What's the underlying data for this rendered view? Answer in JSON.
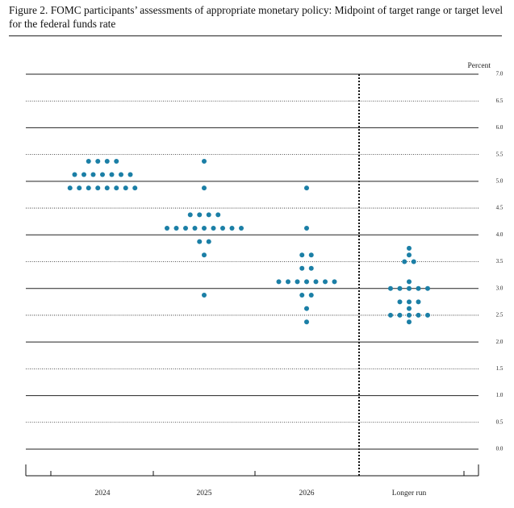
{
  "chart_data": {
    "type": "dot",
    "title": "Figure 2.  FOMC participants’ assessments of appropriate monetary policy:  Midpoint of target range or target level for the federal funds rate",
    "y_axis_label": "Percent",
    "categories": [
      "2024",
      "2025",
      "2026",
      "Longer run"
    ],
    "color": "#1b7fa6",
    "values": [
      [
        5.375,
        5.375,
        5.375,
        5.375,
        5.125,
        5.125,
        5.125,
        5.125,
        5.125,
        5.125,
        5.125,
        4.875,
        4.875,
        4.875,
        4.875,
        4.875,
        4.875,
        4.875,
        4.875
      ],
      [
        5.375,
        4.875,
        4.375,
        4.375,
        4.375,
        4.375,
        4.125,
        4.125,
        4.125,
        4.125,
        4.125,
        4.125,
        4.125,
        4.125,
        4.125,
        3.875,
        3.875,
        3.625,
        2.875
      ],
      [
        4.875,
        4.125,
        3.625,
        3.625,
        3.375,
        3.375,
        3.125,
        3.125,
        3.125,
        3.125,
        3.125,
        3.125,
        3.125,
        2.875,
        2.875,
        2.625,
        2.375
      ],
      [
        3.75,
        3.625,
        3.5,
        3.5,
        3.125,
        3,
        3,
        3,
        3,
        3,
        2.75,
        2.75,
        2.75,
        2.625,
        2.5,
        2.5,
        2.5,
        2.5,
        2.5,
        2.375
      ]
    ],
    "ylim": [
      0,
      7
    ],
    "yticks": [
      {
        "value": 0,
        "label": "0.0"
      },
      {
        "value": 0.5,
        "label": "0.5"
      },
      {
        "value": 1,
        "label": "1.0"
      },
      {
        "value": 1.5,
        "label": "1.5"
      },
      {
        "value": 2,
        "label": "2.0"
      },
      {
        "value": 2.5,
        "label": "2.5"
      },
      {
        "value": 3,
        "label": "3.0"
      },
      {
        "value": 3.5,
        "label": "3.5"
      },
      {
        "value": 4,
        "label": "4.0"
      },
      {
        "value": 4.5,
        "label": "4.5"
      },
      {
        "value": 5,
        "label": "5.0"
      },
      {
        "value": 5.5,
        "label": "5.5"
      },
      {
        "value": 6,
        "label": "6.0"
      },
      {
        "value": 6.5,
        "label": "6.5"
      },
      {
        "value": 7,
        "label": "7.0"
      }
    ],
    "grid": true
  }
}
